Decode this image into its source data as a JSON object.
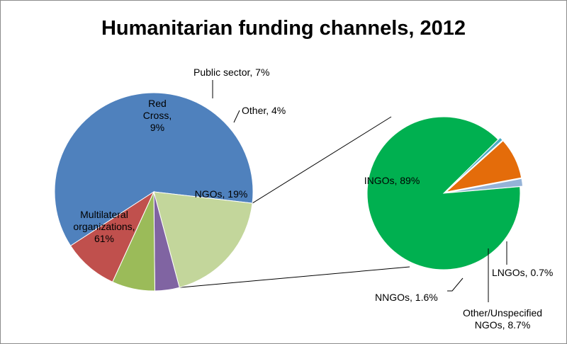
{
  "chart_data": [
    {
      "type": "pie",
      "title": "Humanitarian funding channels, 2012",
      "slices": [
        {
          "label_lines": [
            "Multilateral",
            "organizations,",
            "61%"
          ],
          "value": 61,
          "color": "#4f81bd"
        },
        {
          "label_lines": [
            "NGOs, 19%"
          ],
          "value": 19,
          "color": "#c3d69b"
        },
        {
          "label_lines": [
            "Other, 4%"
          ],
          "value": 4,
          "color": "#8064a2"
        },
        {
          "label_lines": [
            "Public sector, 7%"
          ],
          "value": 7,
          "color": "#9bbb59"
        },
        {
          "label_lines": [
            "Red",
            "Cross,",
            "9%"
          ],
          "value": 9,
          "color": "#c0504d"
        }
      ],
      "exploded_slice": "NGOs, 19%"
    },
    {
      "type": "pie",
      "breakdown_of": "NGOs, 19%",
      "slices": [
        {
          "label_lines": [
            "INGOs, 89%"
          ],
          "value": 89,
          "color": "#00b050"
        },
        {
          "label_lines": [
            "LNGOs, 0.7%"
          ],
          "value": 0.7,
          "color": "#4bacc6"
        },
        {
          "label_lines": [
            "Other/Unspecified",
            "NGOs, 8.7%"
          ],
          "value": 8.7,
          "color": "#e46c0a"
        },
        {
          "label_lines": [
            "NNGOs, 1.6%"
          ],
          "value": 1.6,
          "color": "#95b3d7"
        }
      ]
    }
  ]
}
